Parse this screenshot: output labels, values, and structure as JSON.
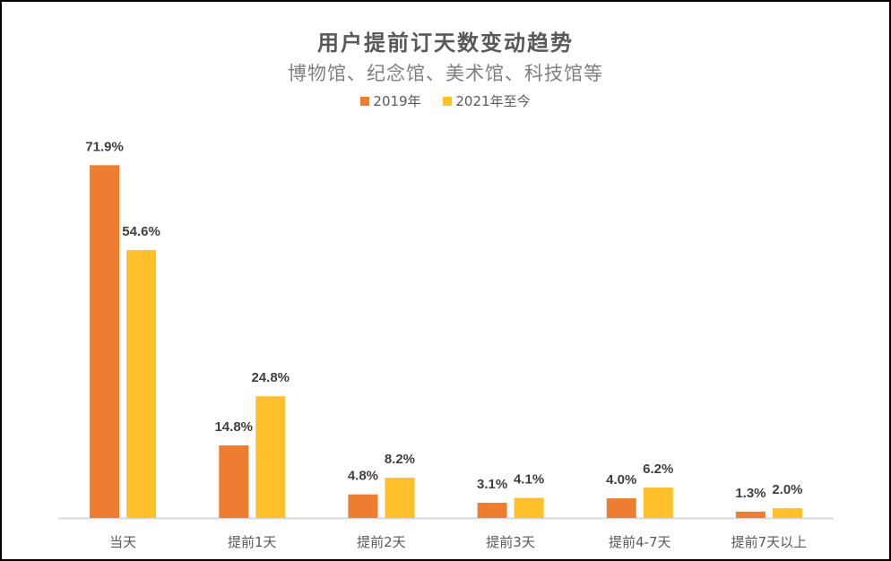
{
  "chart_data": {
    "type": "bar",
    "title": "用户提前订天数变动趋势",
    "subtitle": "博物馆、纪念馆、美术馆、科技馆等",
    "categories": [
      "当天",
      "提前1天",
      "提前2天",
      "提前3天",
      "提前4-7天",
      "提前7天以上"
    ],
    "series": [
      {
        "name": "2019年",
        "color": "#ED7D31",
        "values": [
          71.9,
          14.8,
          4.8,
          3.1,
          4.0,
          1.3
        ],
        "labels": [
          "71.9%",
          "14.8%",
          "4.8%",
          "3.1%",
          "4.0%",
          "1.3%"
        ]
      },
      {
        "name": "2021年至今",
        "color": "#FFC02A",
        "values": [
          54.6,
          24.8,
          8.2,
          4.1,
          6.2,
          2.0
        ],
        "labels": [
          "54.6%",
          "24.8%",
          "8.2%",
          "4.1%",
          "6.2%",
          "2.0%"
        ]
      }
    ],
    "ylim": [
      0,
      80
    ],
    "grid": false,
    "legend": "top",
    "unit": "%"
  }
}
